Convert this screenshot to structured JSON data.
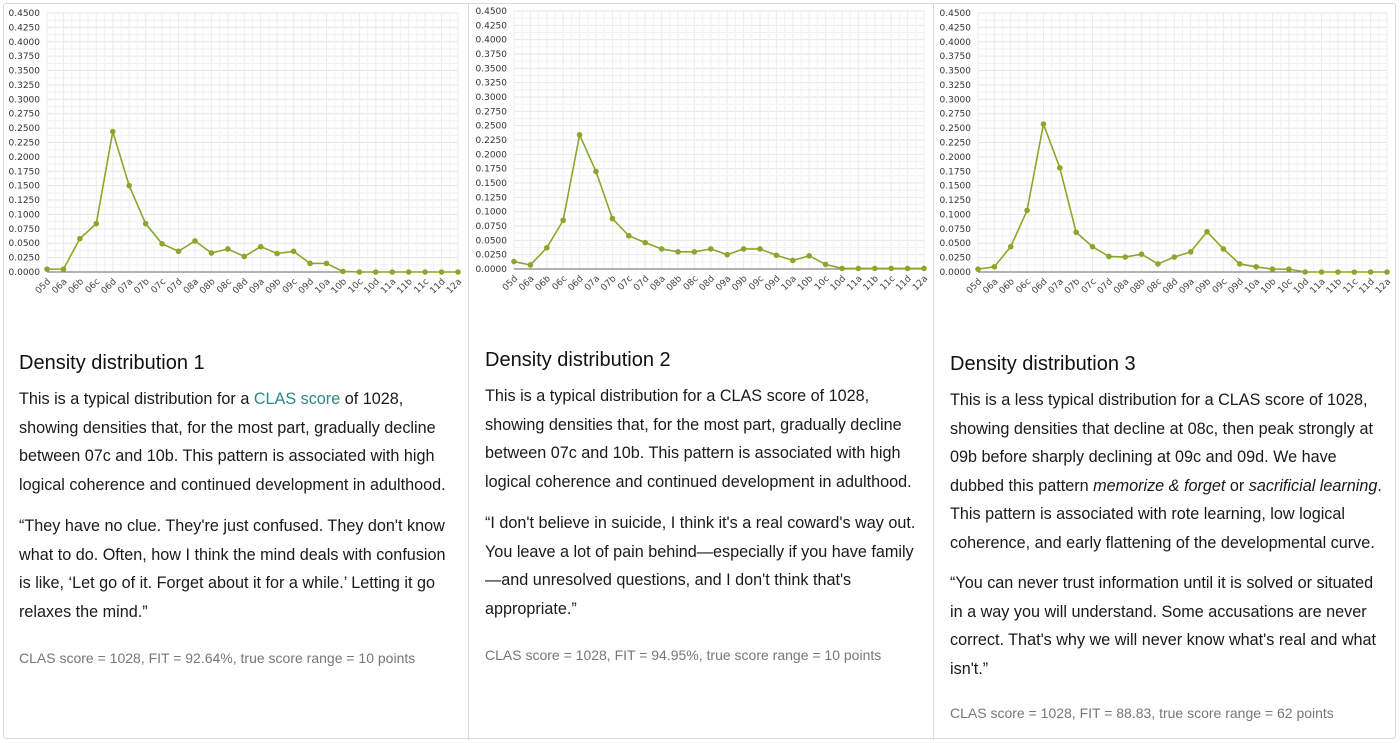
{
  "panels": [
    {
      "title": "Density distribution 1",
      "body": [
        {
          "text": "This is a typical distribution for a "
        },
        {
          "text": "CLAS score",
          "link": true
        },
        {
          "text": " of 1028, showing densities that, for the most part, gradually decline between 07c and 10b. This pattern is associated with high logical coherence and continued development in adulthood."
        }
      ],
      "quote": "“They have no clue. They're just confused. They don't know what to do. Often, how I think the mind deals with confusion is like, ‘Let go of it. Forget about it for a while.’ Letting it go relaxes the mind.”",
      "footer": "CLAS score = 1028, FIT = 92.64%, true score range = 10 points"
    },
    {
      "title": "Density distribution 2",
      "body": [
        {
          "text": "This is a typical distribution for a CLAS score of 1028, showing densities that, for the most part, gradually decline between 07c and 10b. This pattern is associated with high logical coherence and continued development in adulthood."
        }
      ],
      "quote": "“I don't believe in suicide, I think it's a real coward's way out. You leave a lot of pain behind—especially if you have family—and unresolved questions, and I don't think that's appropriate.”",
      "footer": "CLAS score = 1028, FIT = 94.95%, true score range = 10 points"
    },
    {
      "title": "Density distribution 3",
      "body": [
        {
          "text": "This is a less typical distribution for a CLAS score of 1028, showing densities that decline at 08c, then peak strongly at 09b before sharply declining at 09c and 09d. We have dubbed this pattern "
        },
        {
          "text": "memorize & forget",
          "italic": true
        },
        {
          "text": " or "
        },
        {
          "text": "sacrificial learning",
          "italic": true
        },
        {
          "text": ". This pattern is associated with rote learning, low logical coherence, and early flattening of the developmental curve."
        }
      ],
      "quote": "“You can never trust information until it is solved or situated in a way you will understand. Some accusations are never correct. That's why we will never know what's real and what isn't.”",
      "footer": "CLAS score = 1028, FIT = 88.83, true score range = 62 points"
    }
  ],
  "chart_data": [
    {
      "type": "line",
      "categories": [
        "05d",
        "06a",
        "06b",
        "06c",
        "06d",
        "07a",
        "07b",
        "07c",
        "07d",
        "08a",
        "08b",
        "08c",
        "08d",
        "09a",
        "09b",
        "09c",
        "09d",
        "10a",
        "10b",
        "10c",
        "10d",
        "11a",
        "11b",
        "11c",
        "11d",
        "12a"
      ],
      "series": [
        {
          "values": [
            0.005,
            0.005,
            0.058,
            0.084,
            0.244,
            0.15,
            0.084,
            0.049,
            0.036,
            0.054,
            0.033,
            0.04,
            0.027,
            0.044,
            0.032,
            0.036,
            0.015,
            0.015,
            0.001,
            0,
            0,
            0,
            0,
            0,
            0,
            0
          ]
        }
      ],
      "ylim": [
        0,
        0.45
      ],
      "yticks": [
        "0.0000",
        "0.0250",
        "0.0500",
        "0.0750",
        "0.1000",
        "0.1250",
        "0.1500",
        "0.1750",
        "0.2000",
        "0.2250",
        "0.2500",
        "0.2750",
        "0.3000",
        "0.3250",
        "0.3500",
        "0.3750",
        "0.4000",
        "0.4250",
        "0.4500"
      ],
      "grid": true,
      "color": "#8aa72c"
    },
    {
      "type": "line",
      "categories": [
        "05d",
        "06a",
        "06b",
        "06c",
        "06d",
        "07a",
        "07b",
        "07c",
        "07d",
        "08a",
        "08b",
        "08c",
        "08d",
        "09a",
        "09b",
        "09c",
        "09d",
        "10a",
        "10b",
        "10c",
        "10d",
        "11a",
        "11b",
        "11c",
        "11d",
        "12a"
      ],
      "series": [
        {
          "values": [
            0.013,
            0.007,
            0.037,
            0.085,
            0.234,
            0.17,
            0.088,
            0.058,
            0.046,
            0.035,
            0.03,
            0.03,
            0.035,
            0.025,
            0.035,
            0.035,
            0.024,
            0.015,
            0.023,
            0.008,
            0.001,
            0.001,
            0.001,
            0.001,
            0.001,
            0.001
          ]
        }
      ],
      "ylim": [
        0,
        0.45
      ],
      "yticks": [
        "0.0000",
        "0.0250",
        "0.0500",
        "0.0750",
        "0.1000",
        "0.1250",
        "0.1500",
        "0.1750",
        "0.2000",
        "0.2250",
        "0.2500",
        "0.2750",
        "0.3000",
        "0.3250",
        "0.3500",
        "0.3750",
        "0.4000",
        "0.4250",
        "0.4500"
      ],
      "grid": true,
      "color": "#8aa72c"
    },
    {
      "type": "line",
      "categories": [
        "05d",
        "06a",
        "06b",
        "06c",
        "06d",
        "07a",
        "07b",
        "07c",
        "07d",
        "08a",
        "08b",
        "08c",
        "08d",
        "09a",
        "09b",
        "09c",
        "09d",
        "10a",
        "10b",
        "10c",
        "10d",
        "11a",
        "11b",
        "11c",
        "11d",
        "12a"
      ],
      "series": [
        {
          "values": [
            0.005,
            0.009,
            0.044,
            0.107,
            0.257,
            0.181,
            0.069,
            0.044,
            0.027,
            0.026,
            0.031,
            0.014,
            0.026,
            0.035,
            0.07,
            0.04,
            0.014,
            0.009,
            0.005,
            0.005,
            0,
            0,
            0,
            0,
            0,
            0
          ]
        }
      ],
      "ylim": [
        0,
        0.45
      ],
      "yticks": [
        "0.0000",
        "0.0250",
        "0.0500",
        "0.0750",
        "0.1000",
        "0.1250",
        "0.1500",
        "0.1750",
        "0.2000",
        "0.2250",
        "0.2500",
        "0.2750",
        "0.3000",
        "0.3250",
        "0.3500",
        "0.3750",
        "0.4000",
        "0.4250",
        "0.4500"
      ],
      "grid": true,
      "color": "#8aa72c"
    }
  ]
}
